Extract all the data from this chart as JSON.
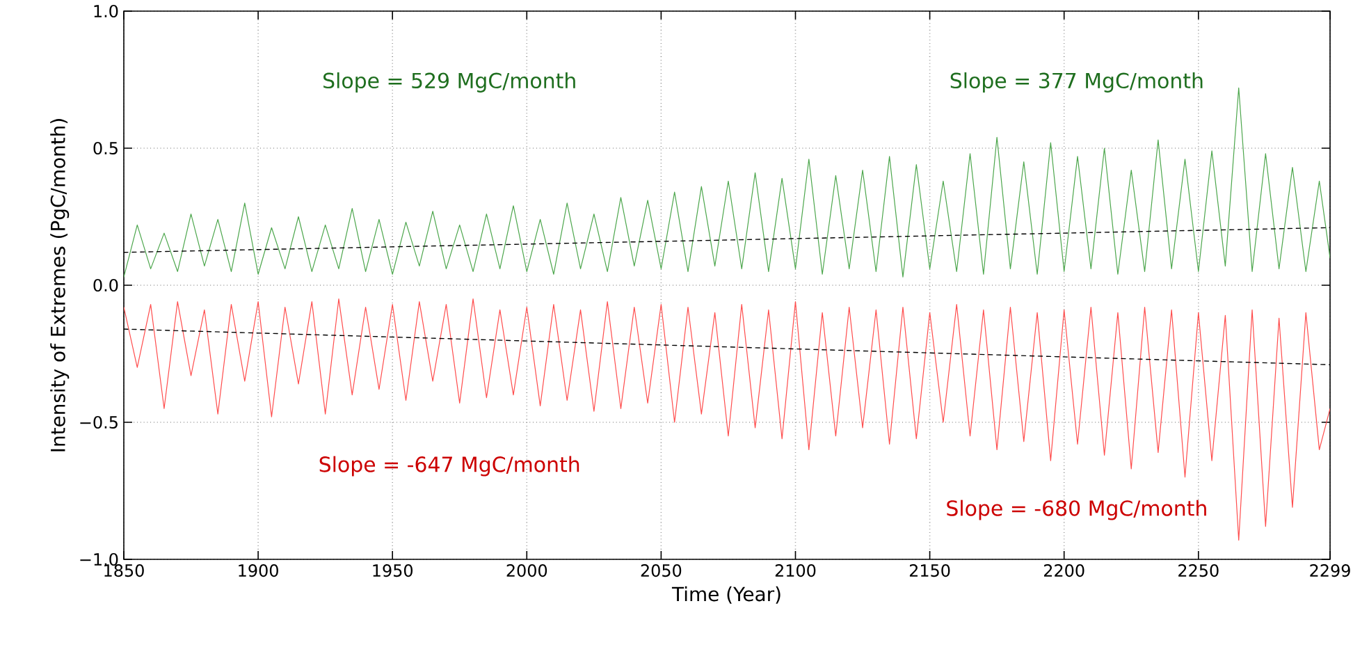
{
  "chart_data": {
    "type": "line",
    "xlabel": "Time (Year)",
    "ylabel": "Intensity of Extremes (PgC/month)",
    "xlim": [
      1850,
      2299
    ],
    "ylim": [
      -1.0,
      1.0
    ],
    "xticks": [
      1850,
      1900,
      1950,
      2000,
      2050,
      2100,
      2150,
      2200,
      2250,
      2299
    ],
    "yticks": [
      {
        "value": -1.0,
        "label": "−1.0"
      },
      {
        "value": -0.5,
        "label": "−0.5"
      },
      {
        "value": 0.0,
        "label": "0.0"
      },
      {
        "value": 0.5,
        "label": "0.5"
      },
      {
        "value": 1.0,
        "label": "1.0"
      }
    ],
    "grid": true,
    "annotations": [
      "Slope = 529 MgC/month",
      "Slope = 377 MgC/month",
      "Slope = -647 MgC/month",
      "Slope = -680 MgC/month"
    ],
    "series": [
      {
        "color": "#4ca64c",
        "x": [
          1850,
          1855,
          1860,
          1865,
          1870,
          1875,
          1880,
          1885,
          1890,
          1895,
          1900,
          1905,
          1910,
          1915,
          1920,
          1925,
          1930,
          1935,
          1940,
          1945,
          1950,
          1955,
          1960,
          1965,
          1970,
          1975,
          1980,
          1985,
          1990,
          1995,
          2000,
          2005,
          2010,
          2015,
          2020,
          2025,
          2030,
          2035,
          2040,
          2045,
          2050,
          2055,
          2060,
          2065,
          2070,
          2075,
          2080,
          2085,
          2090,
          2095,
          2100,
          2105,
          2110,
          2115,
          2120,
          2125,
          2130,
          2135,
          2140,
          2145,
          2150,
          2155,
          2160,
          2165,
          2170,
          2175,
          2180,
          2185,
          2190,
          2195,
          2200,
          2205,
          2210,
          2215,
          2220,
          2225,
          2230,
          2235,
          2240,
          2245,
          2250,
          2255,
          2260,
          2265,
          2270,
          2275,
          2280,
          2285,
          2290,
          2295,
          2299
        ],
        "values": [
          0.03,
          0.22,
          0.06,
          0.19,
          0.05,
          0.26,
          0.07,
          0.24,
          0.05,
          0.3,
          0.04,
          0.21,
          0.06,
          0.25,
          0.05,
          0.22,
          0.06,
          0.28,
          0.05,
          0.24,
          0.04,
          0.23,
          0.07,
          0.27,
          0.06,
          0.22,
          0.05,
          0.26,
          0.06,
          0.29,
          0.05,
          0.24,
          0.04,
          0.3,
          0.06,
          0.26,
          0.05,
          0.32,
          0.07,
          0.31,
          0.06,
          0.34,
          0.05,
          0.36,
          0.07,
          0.38,
          0.06,
          0.41,
          0.05,
          0.39,
          0.06,
          0.46,
          0.04,
          0.4,
          0.06,
          0.42,
          0.05,
          0.47,
          0.03,
          0.44,
          0.06,
          0.38,
          0.05,
          0.48,
          0.04,
          0.54,
          0.06,
          0.45,
          0.04,
          0.52,
          0.05,
          0.47,
          0.06,
          0.5,
          0.04,
          0.42,
          0.05,
          0.53,
          0.06,
          0.46,
          0.05,
          0.49,
          0.07,
          0.72,
          0.05,
          0.48,
          0.06,
          0.43,
          0.05,
          0.38,
          0.1
        ]
      },
      {
        "color": "#ff4c4c",
        "x": [
          1850,
          1855,
          1860,
          1865,
          1870,
          1875,
          1880,
          1885,
          1890,
          1895,
          1900,
          1905,
          1910,
          1915,
          1920,
          1925,
          1930,
          1935,
          1940,
          1945,
          1950,
          1955,
          1960,
          1965,
          1970,
          1975,
          1980,
          1985,
          1990,
          1995,
          2000,
          2005,
          2010,
          2015,
          2020,
          2025,
          2030,
          2035,
          2040,
          2045,
          2050,
          2055,
          2060,
          2065,
          2070,
          2075,
          2080,
          2085,
          2090,
          2095,
          2100,
          2105,
          2110,
          2115,
          2120,
          2125,
          2130,
          2135,
          2140,
          2145,
          2150,
          2155,
          2160,
          2165,
          2170,
          2175,
          2180,
          2185,
          2190,
          2195,
          2200,
          2205,
          2210,
          2215,
          2220,
          2225,
          2230,
          2235,
          2240,
          2245,
          2250,
          2255,
          2260,
          2265,
          2270,
          2275,
          2280,
          2285,
          2290,
          2295,
          2299
        ],
        "values": [
          -0.08,
          -0.3,
          -0.07,
          -0.45,
          -0.06,
          -0.33,
          -0.09,
          -0.47,
          -0.07,
          -0.35,
          -0.06,
          -0.48,
          -0.08,
          -0.36,
          -0.06,
          -0.47,
          -0.05,
          -0.4,
          -0.08,
          -0.38,
          -0.07,
          -0.42,
          -0.06,
          -0.35,
          -0.07,
          -0.43,
          -0.05,
          -0.41,
          -0.09,
          -0.4,
          -0.08,
          -0.44,
          -0.07,
          -0.42,
          -0.09,
          -0.46,
          -0.06,
          -0.45,
          -0.08,
          -0.43,
          -0.07,
          -0.5,
          -0.08,
          -0.47,
          -0.1,
          -0.55,
          -0.07,
          -0.52,
          -0.09,
          -0.56,
          -0.06,
          -0.6,
          -0.1,
          -0.55,
          -0.08,
          -0.52,
          -0.09,
          -0.58,
          -0.08,
          -0.56,
          -0.1,
          -0.5,
          -0.07,
          -0.55,
          -0.09,
          -0.6,
          -0.08,
          -0.57,
          -0.1,
          -0.64,
          -0.09,
          -0.58,
          -0.08,
          -0.62,
          -0.1,
          -0.67,
          -0.08,
          -0.61,
          -0.09,
          -0.7,
          -0.1,
          -0.64,
          -0.11,
          -0.93,
          -0.09,
          -0.88,
          -0.12,
          -0.81,
          -0.1,
          -0.6,
          -0.45
        ]
      },
      {
        "type": "line",
        "color": "#000000",
        "line_style": "dashed",
        "x": [
          1850,
          2299
        ],
        "values": [
          0.12,
          0.21
        ]
      },
      {
        "type": "line",
        "color": "#000000",
        "line_style": "dashed",
        "x": [
          1850,
          2299
        ],
        "values": [
          -0.16,
          -0.29
        ]
      }
    ]
  }
}
